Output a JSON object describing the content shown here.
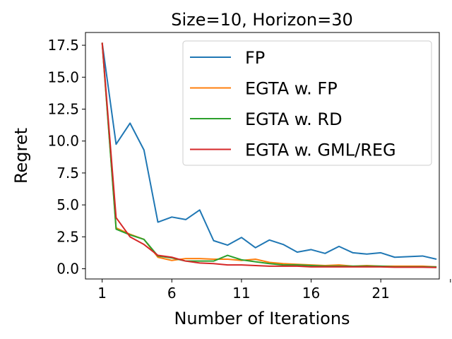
{
  "chart_data": {
    "type": "line",
    "title": "Size=10, Horizon=30",
    "xlabel": "Number of Iterations",
    "ylabel": "Regret",
    "xlim": [
      -0.2,
      25.2
    ],
    "ylim": [
      -0.8,
      18.5
    ],
    "xticks": [
      1,
      6,
      11,
      16,
      21,
      26
    ],
    "xtick_labels": [
      "1",
      "6",
      "11",
      "16",
      "21",
      ""
    ],
    "yticks": [
      0.0,
      2.5,
      5.0,
      7.5,
      10.0,
      12.5,
      15.0,
      17.5
    ],
    "ytick_labels": [
      "0.0",
      "2.5",
      "5.0",
      "7.5",
      "10.0",
      "12.5",
      "15.0",
      "17.5"
    ],
    "grid": false,
    "legend_position": "top-right",
    "x": [
      1,
      2,
      3,
      4,
      5,
      6,
      7,
      8,
      9,
      10,
      11,
      12,
      13,
      14,
      15,
      16,
      17,
      18,
      19,
      20,
      21,
      22,
      23,
      24,
      25
    ],
    "series": [
      {
        "name": "FP",
        "color": "#1f77b4",
        "values": [
          17.7,
          9.75,
          11.4,
          9.3,
          3.65,
          4.05,
          3.85,
          4.6,
          2.2,
          1.85,
          2.45,
          1.65,
          2.25,
          1.9,
          1.3,
          1.5,
          1.2,
          1.75,
          1.25,
          1.15,
          1.25,
          0.9,
          0.95,
          1.0,
          0.75
        ]
      },
      {
        "name": "EGTA w. FP",
        "color": "#ff7f0e",
        "values": [
          17.7,
          3.2,
          2.7,
          2.3,
          0.9,
          0.65,
          0.8,
          0.8,
          0.75,
          0.75,
          0.65,
          0.75,
          0.5,
          0.4,
          0.35,
          0.3,
          0.25,
          0.3,
          0.2,
          0.25,
          0.2,
          0.2,
          0.2,
          0.2,
          0.15
        ]
      },
      {
        "name": "EGTA w. RD",
        "color": "#2ca02c",
        "values": [
          17.7,
          3.1,
          2.65,
          2.3,
          1.0,
          0.85,
          0.6,
          0.6,
          0.6,
          1.05,
          0.7,
          0.55,
          0.4,
          0.3,
          0.3,
          0.25,
          0.2,
          0.2,
          0.2,
          0.2,
          0.2,
          0.15,
          0.15,
          0.15,
          0.15
        ]
      },
      {
        "name": "EGTA w. GML/REG",
        "color": "#d62728",
        "values": [
          17.7,
          4.0,
          2.5,
          1.9,
          1.05,
          0.9,
          0.6,
          0.45,
          0.4,
          0.3,
          0.3,
          0.25,
          0.2,
          0.2,
          0.2,
          0.15,
          0.15,
          0.15,
          0.15,
          0.15,
          0.15,
          0.12,
          0.12,
          0.12,
          0.1
        ]
      }
    ]
  }
}
